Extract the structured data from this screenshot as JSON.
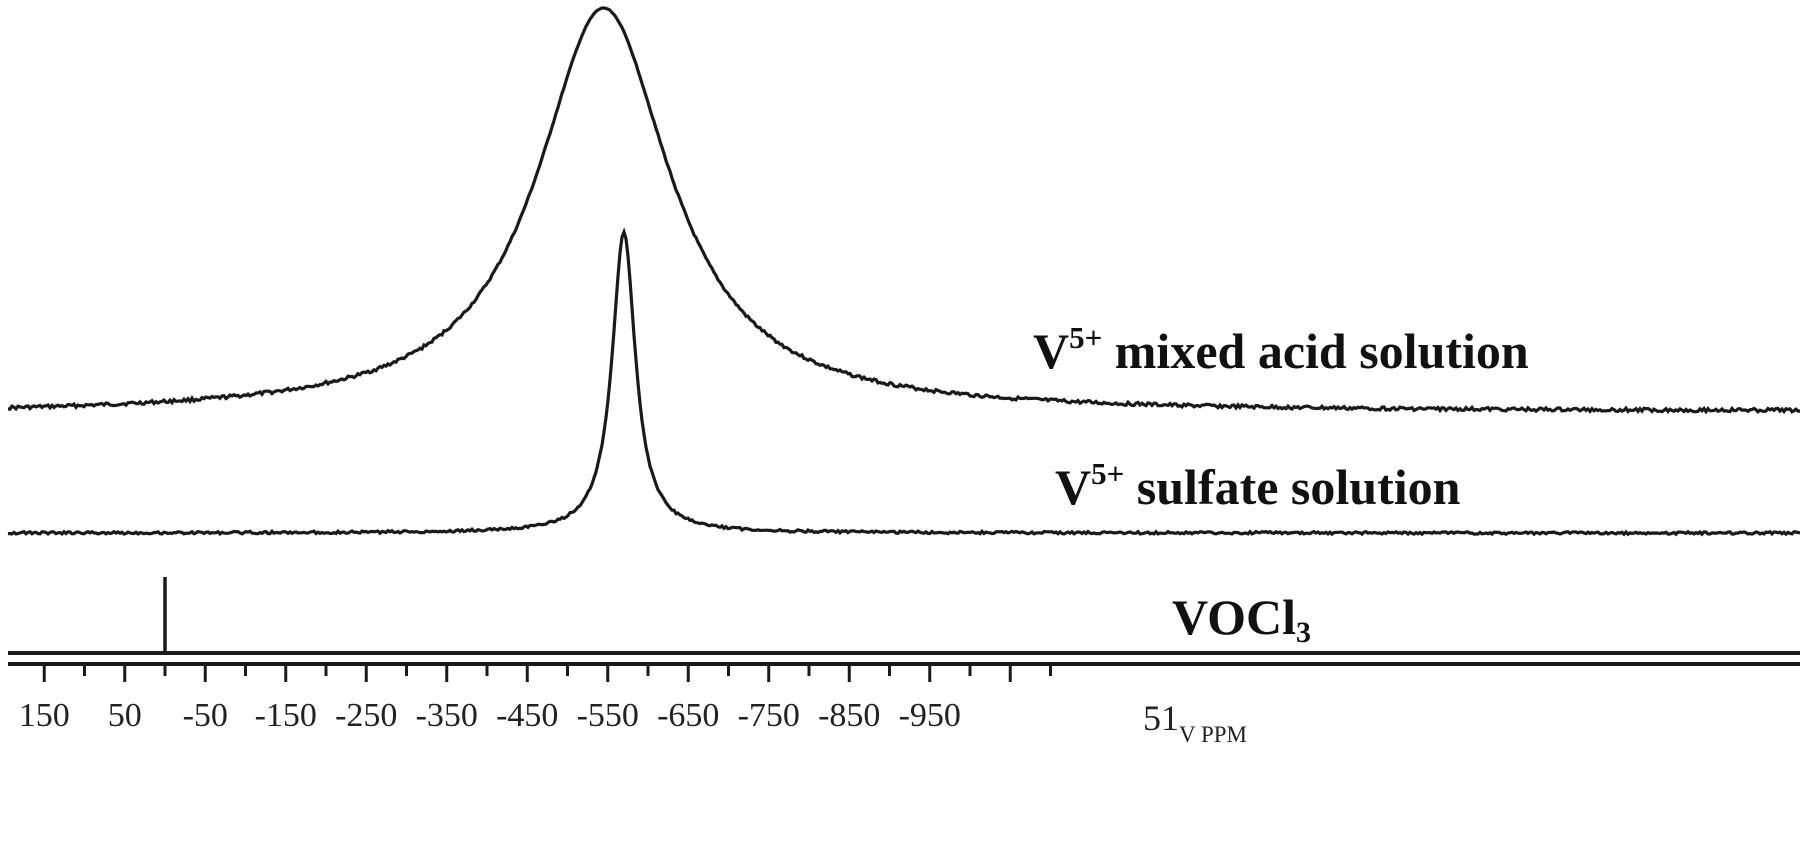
{
  "chart_data": {
    "type": "line",
    "title": "",
    "xlabel": "51V PPM",
    "xlabel_parts": {
      "main": "51",
      "sub": "V PPM"
    },
    "ylabel": "",
    "x_reversed": true,
    "xlim": [
      180,
      -1110
    ],
    "grid": false,
    "legend_position": "inline-right",
    "tick_labels": [
      "150",
      "50",
      "-50",
      "-150",
      "-250",
      "-350",
      "-450",
      "-550",
      "-650",
      "-750",
      "-850",
      "-950"
    ],
    "tick_values": [
      150,
      50,
      -50,
      -150,
      -250,
      -350,
      -450,
      -550,
      -650,
      -750,
      -850,
      -950
    ],
    "series": [
      {
        "name": "V5+ mixed acid solution",
        "label_main": "V",
        "label_sup": "5+",
        "label_rest": " mixed acid solution",
        "peak_ppm": -545,
        "shape": "broad Lorentzian",
        "relative_height": 1.0,
        "fwhm_ppm": 200
      },
      {
        "name": "V5+ sulfate solution",
        "label_main": "V",
        "label_sup": "5+",
        "label_rest": " sulfate solution",
        "peak_ppm": -570,
        "shape": "narrow Lorentzian",
        "relative_height": 1.0,
        "fwhm_ppm": 35
      },
      {
        "name": "VOCl3",
        "label_main": "VOCl",
        "label_sub": "3",
        "peak_ppm": 0,
        "shape": "sharp reference line",
        "relative_height": 1.0,
        "fwhm_ppm": 1
      }
    ]
  }
}
